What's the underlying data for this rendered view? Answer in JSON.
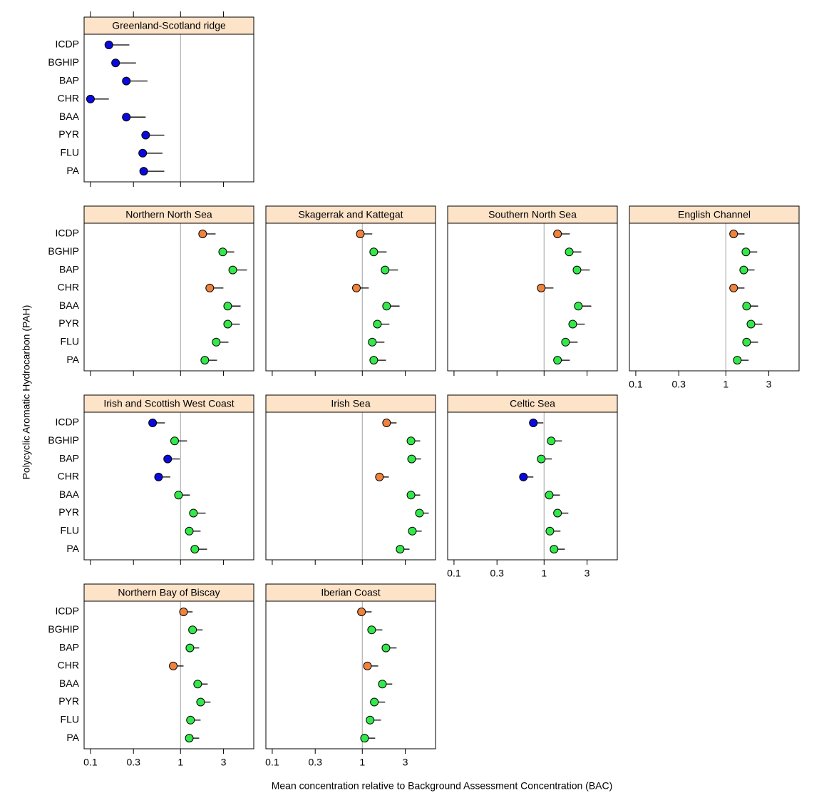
{
  "x_label": "Mean concentration relative to Background Assessment Concentration (BAC)",
  "y_label": "Polycyclic Aromatic Hydrocarbon (PAH)",
  "chart_data": [
    {
      "type": "dot",
      "title": "Greenland-Scotland ridge",
      "categories": [
        "ICDP",
        "BGHIP",
        "BAP",
        "CHR",
        "BAA",
        "PYR",
        "FLU",
        "PA"
      ],
      "values": [
        0.16,
        0.19,
        0.25,
        0.1,
        0.25,
        0.41,
        0.38,
        0.39
      ],
      "upper": [
        0.27,
        0.32,
        0.43,
        0.16,
        0.41,
        0.66,
        0.63,
        0.66
      ],
      "colors": [
        "#0a0adc",
        "#0a0adc",
        "#0a0adc",
        "#0a0adc",
        "#0a0adc",
        "#0a0adc",
        "#0a0adc",
        "#0a0adc"
      ],
      "xscale": "log",
      "xlim": [
        0.085,
        6.5
      ],
      "xticks": [
        0.1,
        0.3,
        1,
        3
      ],
      "reference_line": 1
    },
    {
      "type": "dot",
      "title": "Northern North Sea",
      "categories": [
        "ICDP",
        "BGHIP",
        "BAP",
        "CHR",
        "BAA",
        "PYR",
        "FLU",
        "PA"
      ],
      "values": [
        1.76,
        2.94,
        3.8,
        2.11,
        3.34,
        3.34,
        2.49,
        1.86
      ],
      "upper": [
        2.45,
        3.94,
        5.47,
        2.99,
        4.64,
        4.55,
        3.4,
        2.54
      ],
      "colors": [
        "#f0823c",
        "#33e84a",
        "#33e84a",
        "#f0823c",
        "#33e84a",
        "#33e84a",
        "#33e84a",
        "#33e84a"
      ],
      "xscale": "log",
      "xlim": [
        0.085,
        6.5
      ],
      "xticks": [
        0.1,
        0.3,
        1,
        3
      ],
      "reference_line": 1
    },
    {
      "type": "dot",
      "title": "Skagerrak and Kattegat",
      "categories": [
        "ICDP",
        "BGHIP",
        "BAP",
        "CHR",
        "BAA",
        "PYR",
        "FLU",
        "PA"
      ],
      "values": [
        0.95,
        1.34,
        1.79,
        0.86,
        1.86,
        1.47,
        1.29,
        1.34
      ],
      "upper": [
        1.29,
        1.86,
        2.49,
        1.18,
        2.59,
        2.0,
        1.76,
        1.83
      ],
      "colors": [
        "#f0823c",
        "#33e84a",
        "#33e84a",
        "#f0823c",
        "#33e84a",
        "#33e84a",
        "#33e84a",
        "#33e84a"
      ],
      "xscale": "log",
      "xlim": [
        0.085,
        6.5
      ],
      "xticks": [
        0.1,
        0.3,
        1,
        3
      ],
      "reference_line": 1
    },
    {
      "type": "dot",
      "title": "Southern North Sea",
      "categories": [
        "ICDP",
        "BGHIP",
        "BAP",
        "CHR",
        "BAA",
        "PYR",
        "FLU",
        "PA"
      ],
      "values": [
        1.41,
        1.9,
        2.32,
        0.93,
        2.4,
        2.08,
        1.73,
        1.41
      ],
      "upper": [
        1.93,
        2.59,
        3.22,
        1.27,
        3.34,
        2.83,
        2.36,
        1.93
      ],
      "colors": [
        "#f0823c",
        "#33e84a",
        "#33e84a",
        "#f0823c",
        "#33e84a",
        "#33e84a",
        "#33e84a",
        "#33e84a"
      ],
      "xscale": "log",
      "xlim": [
        0.085,
        6.5
      ],
      "xticks": [
        0.1,
        0.3,
        1,
        3
      ],
      "reference_line": 1
    },
    {
      "type": "dot",
      "title": "English Channel",
      "categories": [
        "ICDP",
        "BGHIP",
        "BAP",
        "CHR",
        "BAA",
        "PYR",
        "FLU",
        "PA"
      ],
      "values": [
        1.22,
        1.67,
        1.58,
        1.22,
        1.7,
        1.9,
        1.7,
        1.34
      ],
      "upper": [
        1.61,
        2.23,
        2.08,
        1.61,
        2.28,
        2.54,
        2.28,
        1.79
      ],
      "colors": [
        "#f0823c",
        "#33e84a",
        "#33e84a",
        "#f0823c",
        "#33e84a",
        "#33e84a",
        "#33e84a",
        "#33e84a"
      ],
      "xscale": "log",
      "xlim": [
        0.085,
        6.5
      ],
      "xticks": [
        0.1,
        0.3,
        1,
        3
      ],
      "reference_line": 1
    },
    {
      "type": "dot",
      "title": "Irish and Scottish West Coast",
      "categories": [
        "ICDP",
        "BGHIP",
        "BAP",
        "CHR",
        "BAA",
        "PYR",
        "FLU",
        "PA"
      ],
      "values": [
        0.49,
        0.86,
        0.72,
        0.57,
        0.95,
        1.39,
        1.25,
        1.44
      ],
      "upper": [
        0.67,
        1.18,
        0.98,
        0.77,
        1.27,
        1.9,
        1.67,
        1.97
      ],
      "colors": [
        "#0a0adc",
        "#33e84a",
        "#0a0adc",
        "#0a0adc",
        "#33e84a",
        "#33e84a",
        "#33e84a",
        "#33e84a"
      ],
      "xscale": "log",
      "xlim": [
        0.085,
        6.5
      ],
      "xticks": [
        0.1,
        0.3,
        1,
        3
      ],
      "reference_line": 1
    },
    {
      "type": "dot",
      "title": "Irish Sea",
      "categories": [
        "ICDP",
        "BGHIP",
        "BAP",
        "CHR",
        "BAA",
        "PYR",
        "FLU",
        "PA"
      ],
      "values": [
        1.86,
        3.47,
        3.53,
        1.55,
        3.47,
        4.31,
        3.59,
        2.63
      ],
      "upper": [
        2.4,
        4.39,
        4.48,
        1.97,
        4.39,
        5.47,
        4.56,
        3.34
      ],
      "colors": [
        "#f0823c",
        "#33e84a",
        "#33e84a",
        "#f0823c",
        "#33e84a",
        "#33e84a",
        "#33e84a",
        "#33e84a"
      ],
      "xscale": "log",
      "xlim": [
        0.085,
        6.5
      ],
      "xticks": [
        0.1,
        0.3,
        1,
        3
      ],
      "reference_line": 1
    },
    {
      "type": "dot",
      "title": "Celtic Sea",
      "categories": [
        "ICDP",
        "BGHIP",
        "BAP",
        "CHR",
        "BAA",
        "PYR",
        "FLU",
        "PA"
      ],
      "values": [
        0.76,
        1.2,
        0.93,
        0.59,
        1.14,
        1.41,
        1.16,
        1.29
      ],
      "upper": [
        0.98,
        1.58,
        1.22,
        0.76,
        1.5,
        1.86,
        1.52,
        1.7
      ],
      "colors": [
        "#0a0adc",
        "#33e84a",
        "#33e84a",
        "#0a0adc",
        "#33e84a",
        "#33e84a",
        "#33e84a",
        "#33e84a"
      ],
      "xscale": "log",
      "xlim": [
        0.085,
        6.5
      ],
      "xticks": [
        0.1,
        0.3,
        1,
        3
      ],
      "reference_line": 1
    },
    {
      "type": "dot",
      "title": "Northern Bay of Biscay",
      "categories": [
        "ICDP",
        "BGHIP",
        "BAP",
        "CHR",
        "BAA",
        "PYR",
        "FLU",
        "PA"
      ],
      "values": [
        1.08,
        1.36,
        1.27,
        0.83,
        1.55,
        1.67,
        1.29,
        1.25
      ],
      "upper": [
        1.36,
        1.76,
        1.61,
        1.08,
        2.0,
        2.15,
        1.67,
        1.61
      ],
      "colors": [
        "#f0823c",
        "#33e84a",
        "#33e84a",
        "#f0823c",
        "#33e84a",
        "#33e84a",
        "#33e84a",
        "#33e84a"
      ],
      "xscale": "log",
      "xlim": [
        0.085,
        6.5
      ],
      "xticks": [
        0.1,
        0.3,
        1,
        3
      ],
      "reference_line": 1
    },
    {
      "type": "dot",
      "title": "Iberian Coast",
      "categories": [
        "ICDP",
        "BGHIP",
        "BAP",
        "CHR",
        "BAA",
        "PYR",
        "FLU",
        "PA"
      ],
      "values": [
        0.98,
        1.27,
        1.83,
        1.14,
        1.67,
        1.36,
        1.22,
        1.06
      ],
      "upper": [
        1.27,
        1.67,
        2.4,
        1.5,
        2.15,
        1.79,
        1.61,
        1.39
      ],
      "colors": [
        "#f0823c",
        "#33e84a",
        "#33e84a",
        "#f0823c",
        "#33e84a",
        "#33e84a",
        "#33e84a",
        "#33e84a"
      ],
      "xscale": "log",
      "xlim": [
        0.085,
        6.5
      ],
      "xticks": [
        0.1,
        0.3,
        1,
        3
      ],
      "reference_line": 1
    }
  ]
}
